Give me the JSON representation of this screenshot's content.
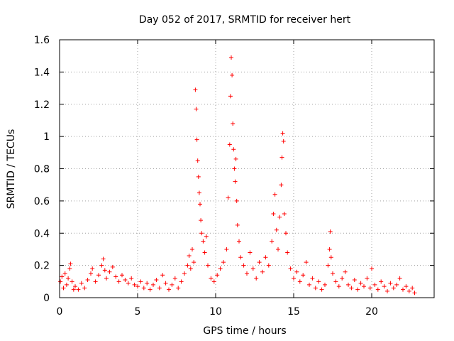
{
  "chart_data": {
    "type": "scatter",
    "title": "Day 052 of 2017, SRMTID for receiver hert",
    "xlabel": "GPS time / hours",
    "ylabel": "SRMTID / TECUs",
    "xlim": [
      0,
      24
    ],
    "ylim": [
      0,
      1.6
    ],
    "xticks": [
      0,
      5,
      10,
      15,
      20
    ],
    "yticks": [
      0,
      0.2,
      0.4,
      0.6,
      0.8,
      1.0,
      1.2,
      1.4,
      1.6
    ],
    "xtick_labels": [
      "0",
      "5",
      "10",
      "15",
      "20"
    ],
    "ytick_labels": [
      "0",
      "0.2",
      "0.4",
      "0.6",
      "0.8",
      "1",
      "1.2",
      "1.4",
      "1.6"
    ],
    "grid": true,
    "marker": "+",
    "series_color": "#ff0000",
    "series": [
      {
        "name": "SRMTID",
        "points": [
          [
            0.05,
            0.1
          ],
          [
            0.15,
            0.13
          ],
          [
            0.25,
            0.06
          ],
          [
            0.35,
            0.15
          ],
          [
            0.45,
            0.08
          ],
          [
            0.55,
            0.12
          ],
          [
            0.65,
            0.18
          ],
          [
            0.7,
            0.21
          ],
          [
            0.8,
            0.1
          ],
          [
            0.9,
            0.05
          ],
          [
            1.0,
            0.07
          ],
          [
            1.2,
            0.05
          ],
          [
            1.4,
            0.09
          ],
          [
            1.6,
            0.06
          ],
          [
            1.8,
            0.11
          ],
          [
            2.0,
            0.15
          ],
          [
            2.1,
            0.18
          ],
          [
            2.3,
            0.1
          ],
          [
            2.5,
            0.14
          ],
          [
            2.7,
            0.2
          ],
          [
            2.8,
            0.24
          ],
          [
            2.9,
            0.17
          ],
          [
            3.0,
            0.12
          ],
          [
            3.2,
            0.16
          ],
          [
            3.4,
            0.19
          ],
          [
            3.6,
            0.13
          ],
          [
            3.8,
            0.1
          ],
          [
            4.0,
            0.14
          ],
          [
            4.2,
            0.11
          ],
          [
            4.4,
            0.09
          ],
          [
            4.6,
            0.12
          ],
          [
            4.8,
            0.08
          ],
          [
            5.0,
            0.07
          ],
          [
            5.2,
            0.1
          ],
          [
            5.4,
            0.06
          ],
          [
            5.6,
            0.09
          ],
          [
            5.8,
            0.05
          ],
          [
            6.0,
            0.08
          ],
          [
            6.2,
            0.11
          ],
          [
            6.4,
            0.06
          ],
          [
            6.6,
            0.14
          ],
          [
            6.8,
            0.09
          ],
          [
            7.0,
            0.05
          ],
          [
            7.2,
            0.08
          ],
          [
            7.4,
            0.12
          ],
          [
            7.6,
            0.06
          ],
          [
            7.8,
            0.1
          ],
          [
            8.0,
            0.15
          ],
          [
            8.2,
            0.2
          ],
          [
            8.3,
            0.26
          ],
          [
            8.4,
            0.18
          ],
          [
            8.5,
            0.3
          ],
          [
            8.6,
            0.22
          ],
          [
            8.7,
            1.29
          ],
          [
            8.75,
            1.17
          ],
          [
            8.8,
            0.98
          ],
          [
            8.85,
            0.85
          ],
          [
            8.9,
            0.75
          ],
          [
            8.95,
            0.65
          ],
          [
            9.0,
            0.58
          ],
          [
            9.05,
            0.48
          ],
          [
            9.1,
            0.4
          ],
          [
            9.2,
            0.35
          ],
          [
            9.3,
            0.28
          ],
          [
            9.4,
            0.38
          ],
          [
            9.5,
            0.2
          ],
          [
            9.7,
            0.12
          ],
          [
            9.9,
            0.1
          ],
          [
            10.1,
            0.14
          ],
          [
            10.3,
            0.18
          ],
          [
            10.5,
            0.22
          ],
          [
            10.7,
            0.3
          ],
          [
            10.8,
            0.62
          ],
          [
            10.9,
            0.95
          ],
          [
            10.95,
            1.25
          ],
          [
            11.0,
            1.49
          ],
          [
            11.05,
            1.38
          ],
          [
            11.1,
            1.08
          ],
          [
            11.15,
            0.92
          ],
          [
            11.2,
            0.8
          ],
          [
            11.25,
            0.72
          ],
          [
            11.3,
            0.86
          ],
          [
            11.35,
            0.6
          ],
          [
            11.4,
            0.45
          ],
          [
            11.5,
            0.35
          ],
          [
            11.6,
            0.25
          ],
          [
            11.8,
            0.2
          ],
          [
            12.0,
            0.15
          ],
          [
            12.2,
            0.28
          ],
          [
            12.4,
            0.18
          ],
          [
            12.6,
            0.12
          ],
          [
            12.8,
            0.22
          ],
          [
            13.0,
            0.16
          ],
          [
            13.2,
            0.25
          ],
          [
            13.4,
            0.2
          ],
          [
            13.6,
            0.35
          ],
          [
            13.7,
            0.52
          ],
          [
            13.8,
            0.64
          ],
          [
            13.9,
            0.42
          ],
          [
            14.0,
            0.3
          ],
          [
            14.1,
            0.5
          ],
          [
            14.2,
            0.7
          ],
          [
            14.25,
            0.87
          ],
          [
            14.3,
            1.02
          ],
          [
            14.35,
            0.97
          ],
          [
            14.4,
            0.52
          ],
          [
            14.5,
            0.4
          ],
          [
            14.6,
            0.28
          ],
          [
            14.8,
            0.18
          ],
          [
            15.0,
            0.12
          ],
          [
            15.2,
            0.16
          ],
          [
            15.4,
            0.1
          ],
          [
            15.6,
            0.14
          ],
          [
            15.8,
            0.22
          ],
          [
            16.0,
            0.08
          ],
          [
            16.2,
            0.12
          ],
          [
            16.4,
            0.06
          ],
          [
            16.6,
            0.1
          ],
          [
            16.8,
            0.05
          ],
          [
            17.0,
            0.08
          ],
          [
            17.2,
            0.2
          ],
          [
            17.3,
            0.3
          ],
          [
            17.35,
            0.41
          ],
          [
            17.4,
            0.25
          ],
          [
            17.5,
            0.15
          ],
          [
            17.7,
            0.1
          ],
          [
            17.9,
            0.07
          ],
          [
            18.1,
            0.12
          ],
          [
            18.3,
            0.16
          ],
          [
            18.5,
            0.08
          ],
          [
            18.7,
            0.06
          ],
          [
            18.9,
            0.11
          ],
          [
            19.1,
            0.05
          ],
          [
            19.3,
            0.09
          ],
          [
            19.5,
            0.07
          ],
          [
            19.7,
            0.12
          ],
          [
            19.9,
            0.06
          ],
          [
            20.0,
            0.18
          ],
          [
            20.2,
            0.08
          ],
          [
            20.4,
            0.05
          ],
          [
            20.6,
            0.1
          ],
          [
            20.8,
            0.07
          ],
          [
            21.0,
            0.04
          ],
          [
            21.2,
            0.09
          ],
          [
            21.4,
            0.06
          ],
          [
            21.6,
            0.08
          ],
          [
            21.8,
            0.12
          ],
          [
            22.0,
            0.05
          ],
          [
            22.2,
            0.07
          ],
          [
            22.4,
            0.04
          ],
          [
            22.6,
            0.06
          ],
          [
            22.75,
            0.03
          ]
        ]
      }
    ]
  }
}
